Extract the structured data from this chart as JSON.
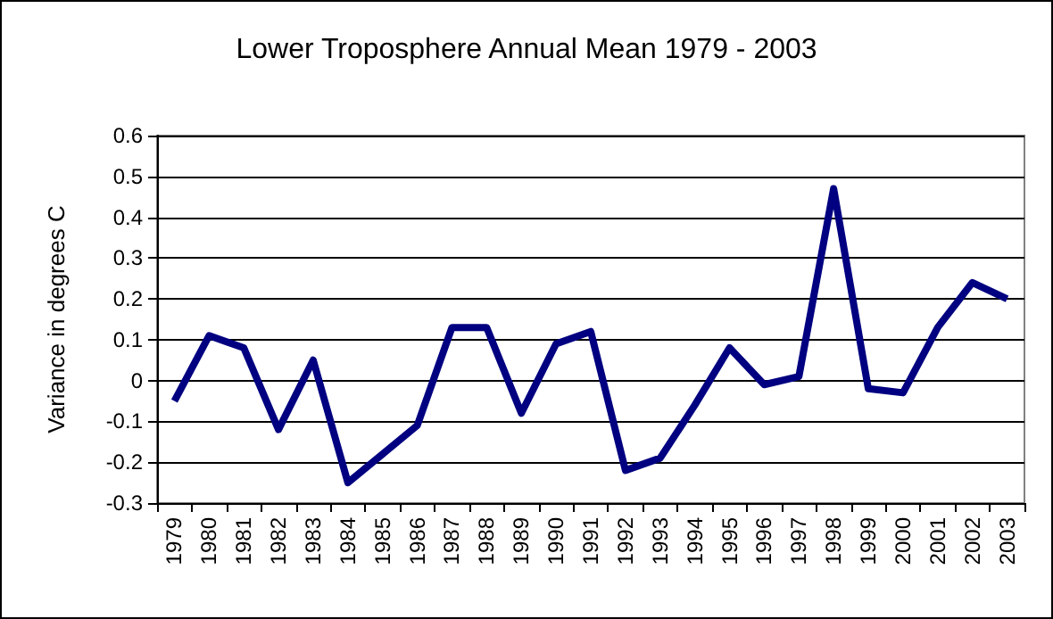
{
  "chart_data": {
    "type": "line",
    "title": "Lower Troposphere Annual Mean 1979 - 2003",
    "ylabel": "Variance in degrees C",
    "categories": [
      "1979",
      "1980",
      "1981",
      "1982",
      "1983",
      "1984",
      "1985",
      "1986",
      "1987",
      "1988",
      "1989",
      "1990",
      "1991",
      "1992",
      "1993",
      "1994",
      "1995",
      "1996",
      "1997",
      "1998",
      "1999",
      "2000",
      "2001",
      "2002",
      "2003"
    ],
    "series": [
      {
        "color": "#000080",
        "values": [
          -0.05,
          0.11,
          0.08,
          -0.12,
          0.05,
          -0.25,
          -0.18,
          -0.11,
          0.13,
          0.13,
          -0.08,
          0.09,
          0.12,
          -0.22,
          -0.19,
          -0.06,
          0.08,
          -0.01,
          0.01,
          0.47,
          -0.02,
          -0.03,
          0.13,
          0.24,
          0.2
        ]
      }
    ],
    "ylim": [
      -0.3,
      0.6
    ],
    "yticks": [
      -0.3,
      -0.2,
      -0.1,
      0,
      0.1,
      0.2,
      0.3,
      0.4,
      0.5,
      0.6
    ],
    "grid": "y",
    "marker": "none",
    "line_style": "solid"
  }
}
